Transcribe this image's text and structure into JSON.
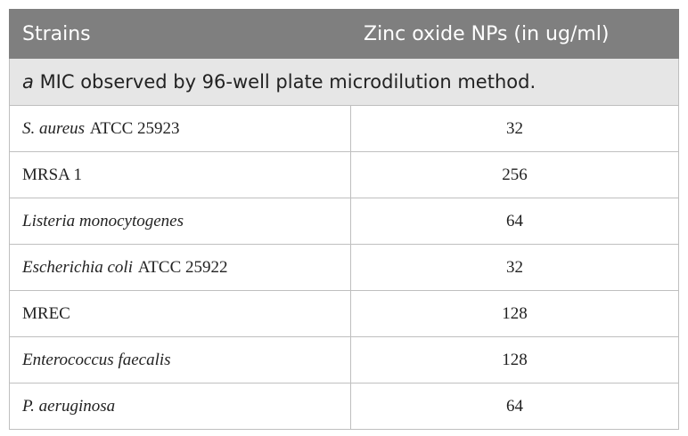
{
  "table": {
    "header": [
      "Strains",
      "Zinc oxide NPs (in ug/ml)"
    ],
    "note": {
      "marker": "a",
      "text": "MIC observed by 96-well plate microdilution method."
    },
    "rows": [
      {
        "name": "S. aureus",
        "italic": true,
        "suffix": "ATCC 25923",
        "value": 32
      },
      {
        "name": "MRSA 1",
        "italic": false,
        "value": 256
      },
      {
        "name": "Listeria monocytogenes",
        "italic": true,
        "value": 64
      },
      {
        "name": "Escherichia coli",
        "italic": true,
        "suffix": "ATCC 25922",
        "value": 32
      },
      {
        "name": "MREC",
        "italic": false,
        "value": 128
      },
      {
        "name": "Enterococcus faecalis",
        "italic": true,
        "value": 128
      },
      {
        "name": "P. aeruginosa",
        "italic": true,
        "value": 64
      }
    ]
  }
}
